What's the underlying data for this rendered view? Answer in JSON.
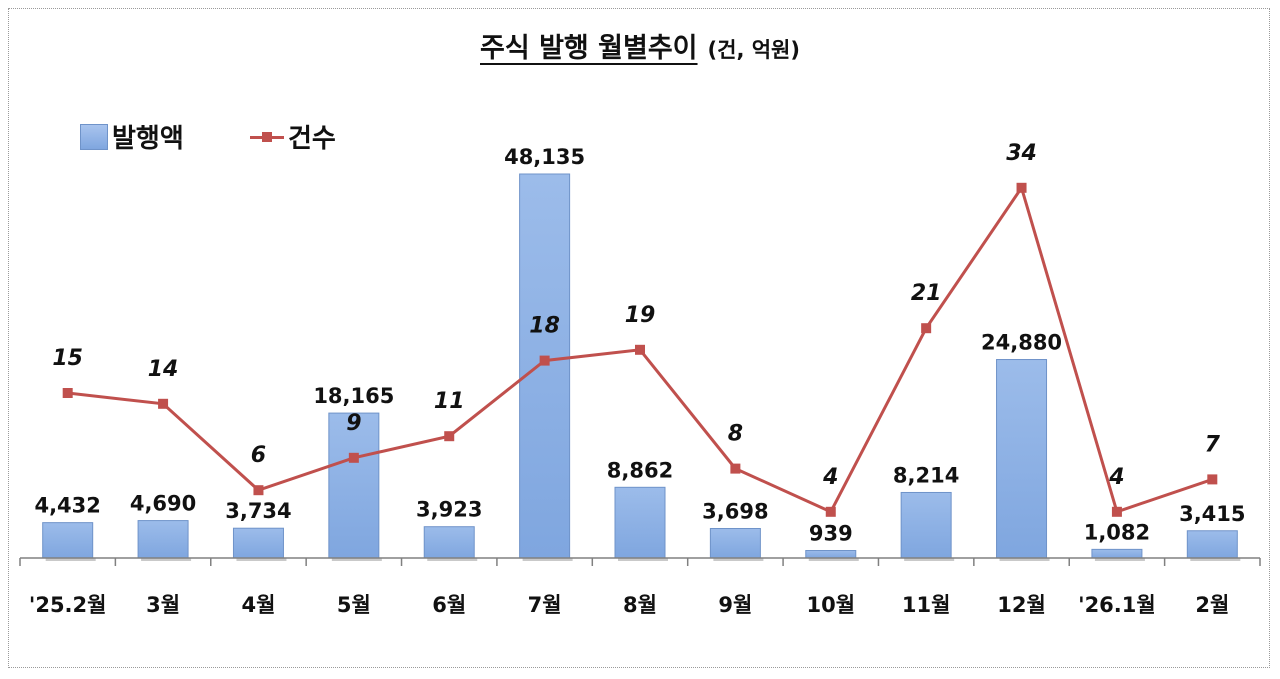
{
  "title": "주식 발행 월별추이",
  "unit": "(건, 억원)",
  "legend": {
    "bar": "발행액",
    "line": "건수"
  },
  "colors": {
    "bar": "#8db3e2",
    "bar_border": "#6f93c9",
    "line": "#c0504d",
    "axis": "#808080"
  },
  "chart_data": {
    "type": "bar",
    "title": "주식 발행 월별추이",
    "categories": [
      "'25.2월",
      "3월",
      "4월",
      "5월",
      "6월",
      "7월",
      "8월",
      "9월",
      "10월",
      "11월",
      "12월",
      "'26.1월",
      "2월"
    ],
    "series": [
      {
        "name": "발행액",
        "type": "bar",
        "values": [
          4432,
          4690,
          3734,
          18165,
          3923,
          48135,
          8862,
          3698,
          939,
          8214,
          24880,
          1082,
          3415
        ],
        "labels": [
          "4,432",
          "4,690",
          "3,734",
          "18,165",
          "3,923",
          "48,135",
          "8,862",
          "3,698",
          "939",
          "8,214",
          "24,880",
          "1,082",
          "3,415"
        ]
      },
      {
        "name": "건수",
        "type": "line",
        "values": [
          15,
          14,
          6,
          9,
          11,
          18,
          19,
          8,
          4,
          21,
          34,
          4,
          7
        ]
      }
    ],
    "legend_position": "top-left",
    "grid": false
  }
}
